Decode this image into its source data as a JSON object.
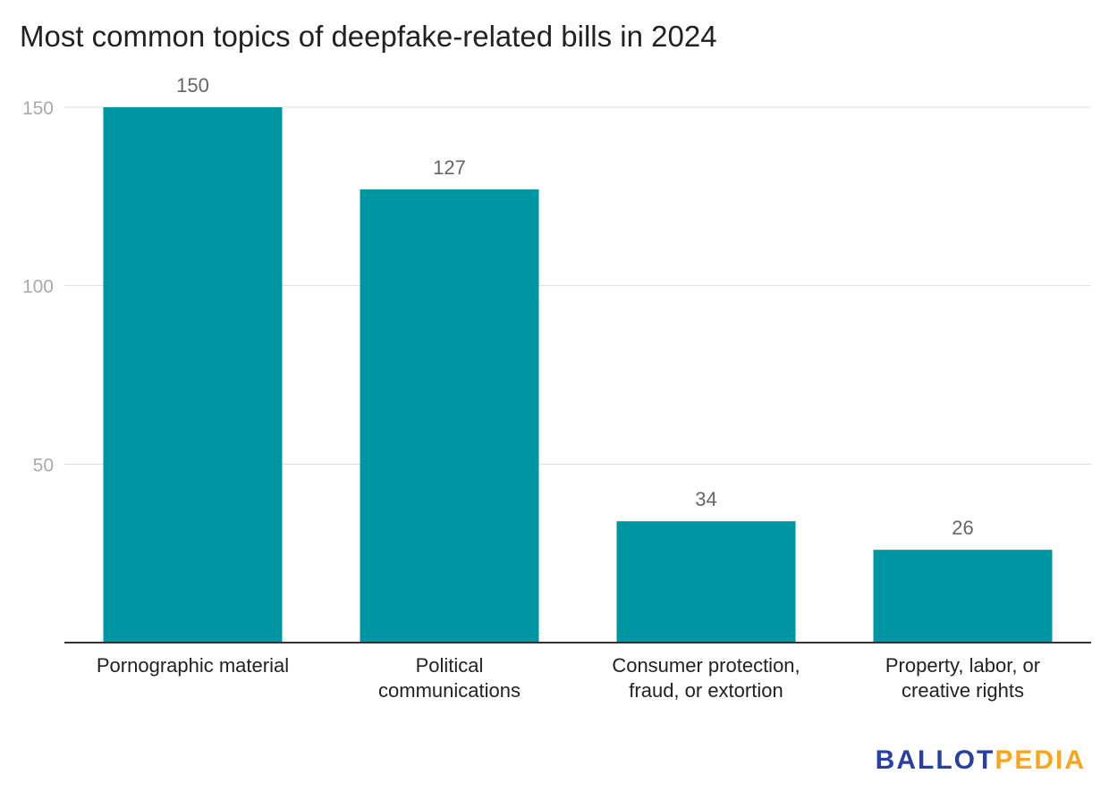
{
  "chart_data": {
    "type": "bar",
    "title": "Most common topics of deepfake-related bills in 2024",
    "categories": [
      [
        "Pornographic material"
      ],
      [
        "Political",
        "communications"
      ],
      [
        "Consumer protection,",
        "fraud, or extortion"
      ],
      [
        "Property, labor, or",
        "creative rights"
      ]
    ],
    "values": [
      150,
      127,
      34,
      26
    ],
    "data_labels": [
      "150",
      "127",
      "34",
      "26"
    ],
    "yticks": [
      50,
      100,
      150
    ],
    "ylim": [
      0,
      150
    ],
    "grid": true,
    "bar_color": "#0095a3"
  },
  "branding": {
    "logo_part1": "BALLOT",
    "logo_part2": "PEDIA"
  },
  "colors": {
    "logo_blue": "#2b3f9e",
    "logo_orange": "#f5a623"
  }
}
